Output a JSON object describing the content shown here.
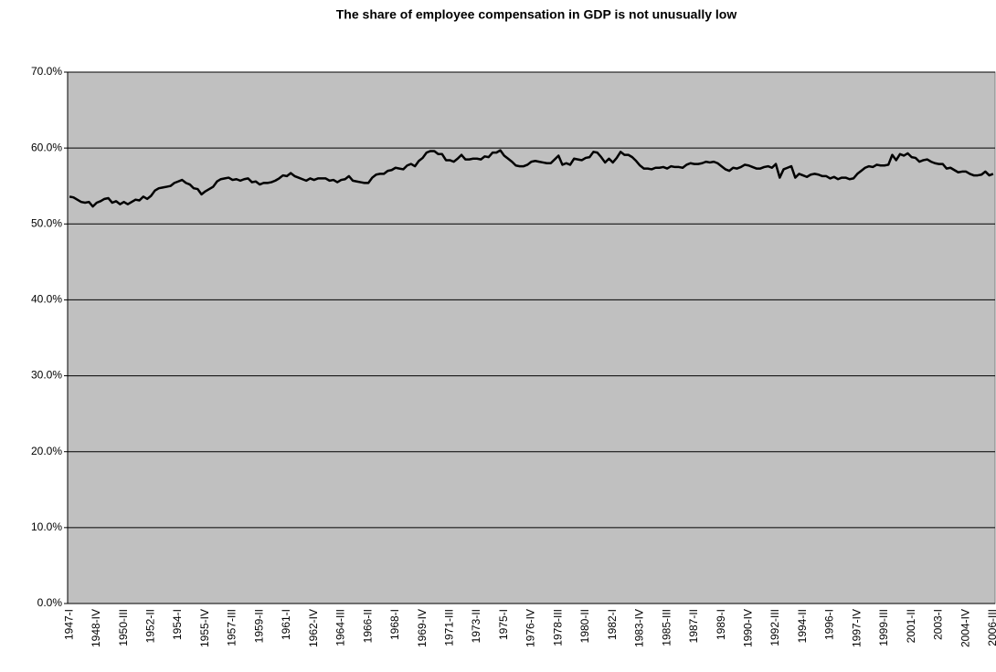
{
  "chart_data": {
    "type": "line",
    "title": "The share of employee compensation in GDP is not unusually low",
    "categories": [
      "1947-I",
      null,
      null,
      null,
      null,
      null,
      null,
      "1948-IV",
      null,
      null,
      null,
      null,
      null,
      null,
      "1950-III",
      null,
      null,
      null,
      null,
      null,
      null,
      "1952-II",
      null,
      null,
      null,
      null,
      null,
      null,
      "1954-I",
      null,
      null,
      null,
      null,
      null,
      null,
      "1955-IV",
      null,
      null,
      null,
      null,
      null,
      null,
      "1957-III",
      null,
      null,
      null,
      null,
      null,
      null,
      "1959-II",
      null,
      null,
      null,
      null,
      null,
      null,
      "1961-I",
      null,
      null,
      null,
      null,
      null,
      null,
      "1962-IV",
      null,
      null,
      null,
      null,
      null,
      null,
      "1964-III",
      null,
      null,
      null,
      null,
      null,
      null,
      "1966-II",
      null,
      null,
      null,
      null,
      null,
      null,
      "1968-I",
      null,
      null,
      null,
      null,
      null,
      null,
      "1969-IV",
      null,
      null,
      null,
      null,
      null,
      null,
      "1971-III",
      null,
      null,
      null,
      null,
      null,
      null,
      "1973-II",
      null,
      null,
      null,
      null,
      null,
      null,
      "1975-I",
      null,
      null,
      null,
      null,
      null,
      null,
      "1976-IV",
      null,
      null,
      null,
      null,
      null,
      null,
      "1978-III",
      null,
      null,
      null,
      null,
      null,
      null,
      "1980-II",
      null,
      null,
      null,
      null,
      null,
      null,
      "1982-I",
      null,
      null,
      null,
      null,
      null,
      null,
      "1983-IV",
      null,
      null,
      null,
      null,
      null,
      null,
      "1985-III",
      null,
      null,
      null,
      null,
      null,
      null,
      "1987-II",
      null,
      null,
      null,
      null,
      null,
      null,
      "1989-I",
      null,
      null,
      null,
      null,
      null,
      null,
      "1990-IV",
      null,
      null,
      null,
      null,
      null,
      null,
      "1992-III",
      null,
      null,
      null,
      null,
      null,
      null,
      "1994-II",
      null,
      null,
      null,
      null,
      null,
      null,
      "1996-I",
      null,
      null,
      null,
      null,
      null,
      null,
      "1997-IV",
      null,
      null,
      null,
      null,
      null,
      null,
      "1999-III",
      null,
      null,
      null,
      null,
      null,
      null,
      "2001-II",
      null,
      null,
      null,
      null,
      null,
      null,
      "2003-I",
      null,
      null,
      null,
      null,
      null,
      null,
      "2004-IV",
      null,
      null,
      null,
      null,
      null,
      null,
      "2006-III"
    ],
    "values": [
      53.6,
      53.5,
      53.2,
      52.9,
      52.8,
      52.9,
      52.3,
      52.8,
      53.0,
      53.3,
      53.4,
      52.8,
      53.0,
      52.6,
      52.9,
      52.6,
      52.9,
      53.2,
      53.1,
      53.6,
      53.3,
      53.7,
      54.4,
      54.7,
      54.8,
      54.9,
      55.0,
      55.4,
      55.6,
      55.8,
      55.4,
      55.2,
      54.7,
      54.6,
      53.9,
      54.3,
      54.6,
      54.9,
      55.6,
      55.9,
      56.0,
      56.1,
      55.8,
      55.9,
      55.7,
      55.9,
      56.0,
      55.5,
      55.6,
      55.2,
      55.4,
      55.4,
      55.5,
      55.7,
      56.0,
      56.4,
      56.3,
      56.7,
      56.3,
      56.1,
      55.9,
      55.7,
      56.0,
      55.8,
      56.0,
      56.0,
      56.0,
      55.7,
      55.8,
      55.5,
      55.8,
      55.9,
      56.3,
      55.7,
      55.6,
      55.5,
      55.4,
      55.4,
      56.1,
      56.5,
      56.6,
      56.6,
      57.0,
      57.1,
      57.4,
      57.3,
      57.2,
      57.7,
      57.9,
      57.6,
      58.3,
      58.7,
      59.4,
      59.6,
      59.6,
      59.2,
      59.2,
      58.4,
      58.4,
      58.2,
      58.6,
      59.1,
      58.5,
      58.5,
      58.6,
      58.6,
      58.5,
      58.9,
      58.8,
      59.4,
      59.4,
      59.7,
      59.0,
      58.6,
      58.2,
      57.7,
      57.6,
      57.6,
      57.8,
      58.2,
      58.3,
      58.2,
      58.1,
      58.0,
      58.0,
      58.5,
      59.0,
      57.8,
      58.0,
      57.8,
      58.6,
      58.5,
      58.4,
      58.7,
      58.8,
      59.5,
      59.4,
      58.8,
      58.1,
      58.6,
      58.1,
      58.7,
      59.5,
      59.1,
      59.1,
      58.8,
      58.3,
      57.7,
      57.3,
      57.3,
      57.2,
      57.4,
      57.4,
      57.5,
      57.3,
      57.6,
      57.5,
      57.5,
      57.4,
      57.8,
      58.0,
      57.9,
      57.9,
      58.0,
      58.2,
      58.1,
      58.2,
      58.0,
      57.6,
      57.2,
      57.0,
      57.4,
      57.3,
      57.5,
      57.8,
      57.7,
      57.5,
      57.3,
      57.3,
      57.5,
      57.6,
      57.4,
      57.9,
      56.1,
      57.2,
      57.4,
      57.6,
      56.1,
      56.6,
      56.4,
      56.2,
      56.5,
      56.6,
      56.5,
      56.3,
      56.3,
      56.0,
      56.2,
      55.9,
      56.1,
      56.1,
      55.9,
      56.0,
      56.6,
      57.0,
      57.4,
      57.6,
      57.5,
      57.8,
      57.7,
      57.7,
      57.8,
      59.1,
      58.4,
      59.2,
      59.0,
      59.3,
      58.8,
      58.7,
      58.2,
      58.4,
      58.5,
      58.2,
      58.0,
      57.9,
      57.9,
      57.3,
      57.4,
      57.1,
      56.8,
      56.9,
      56.9,
      56.6,
      56.4,
      56.4,
      56.5,
      56.9,
      56.4,
      56.6
    ],
    "color": "#000000",
    "ylim": [
      0,
      70
    ],
    "yticks": [
      {
        "value": 0,
        "label": "0.0%"
      },
      {
        "value": 10,
        "label": "10.0%"
      },
      {
        "value": 20,
        "label": "20.0%"
      },
      {
        "value": 30,
        "label": "30.0%"
      },
      {
        "value": 40,
        "label": "40.0%"
      },
      {
        "value": 50,
        "label": "50.0%"
      },
      {
        "value": 60,
        "label": "60.0%"
      },
      {
        "value": 70,
        "label": "70.0%"
      }
    ],
    "grid": true
  }
}
